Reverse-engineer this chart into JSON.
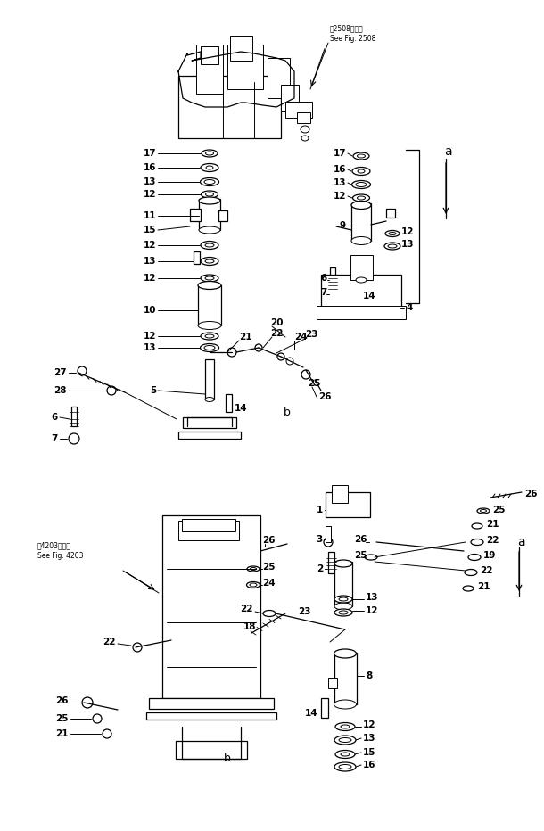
{
  "bg_color": "#ffffff",
  "line_color": "#000000",
  "fig_width": 6.1,
  "fig_height": 9.32,
  "dpi": 100,
  "top_ref_jp": "第2508図参照",
  "top_ref_en": "See Fig. 2508",
  "bot_ref_jp": "第4203図参照",
  "bot_ref_en": "See Fig. 4203"
}
